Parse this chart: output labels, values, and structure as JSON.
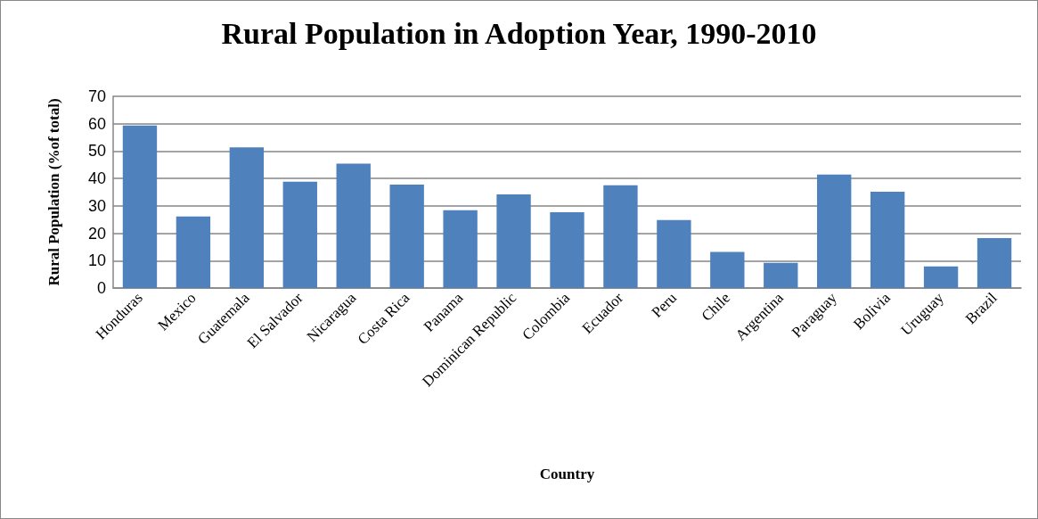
{
  "chart_data": {
    "type": "bar",
    "title": "Rural Population in Adoption Year, 1990-2010",
    "xlabel": "Country",
    "ylabel": "Rural Population (%of total)",
    "categories": [
      "Honduras",
      "Mexico",
      "Guatemala",
      "El Salvador",
      "Nicaragua",
      "Costa Rica",
      "Panama",
      "Dominican Republic",
      "Colombia",
      "Ecuador",
      "Peru",
      "Chile",
      "Argentina",
      "Paraguay",
      "Bolivia",
      "Uruguay",
      "Brazil"
    ],
    "values": [
      59.3,
      26.1,
      51.4,
      38.8,
      45.4,
      37.8,
      28.4,
      34.2,
      27.7,
      37.5,
      24.8,
      13.2,
      9.2,
      41.4,
      35.2,
      7.9,
      18.2
    ],
    "color": "#4f81bd",
    "ylim": [
      0,
      70
    ],
    "yticks": [
      0,
      10,
      20,
      30,
      40,
      50,
      60,
      70
    ],
    "grid": true
  }
}
